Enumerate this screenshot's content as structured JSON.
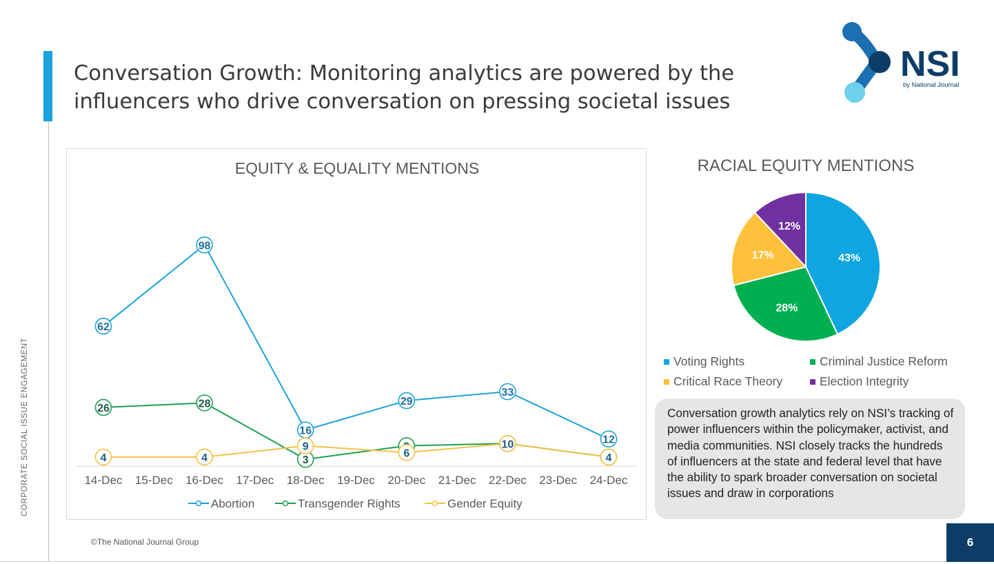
{
  "header": {
    "title_line1": "Conversation Growth: Monitoring analytics are powered by the",
    "title_line2": "influencers who drive conversation on pressing societal issues"
  },
  "logo": {
    "wordmark": "NSI",
    "tagline": "by National Journal"
  },
  "side_label": "CORPORATE SOCIAL ISSUE ENGAGEMENT",
  "footer": {
    "copyright": "©The National Journal Group",
    "page_number": "6"
  },
  "callout": {
    "text": "Conversation growth analytics rely on NSI’s tracking of power influencers within the policymaker, activist, and media communities. NSI closely tracks the hundreds of influencers at the state and federal level that have the ability to spark broader conversation on societal issues and draw in corporations"
  },
  "colors": {
    "accent": "#1aa3dc",
    "navy": "#0b3d66",
    "abortion": "#1aa3dc",
    "transgender": "#1e9e4f",
    "gender_equity": "#f5c242",
    "voting_rights": "#0ea5e0",
    "criminal_justice": "#00b050",
    "critical_race": "#ffc13b",
    "election_integrity": "#7030a0"
  },
  "chart_data": [
    {
      "type": "line",
      "title": "EQUITY & EQUALITY MENTIONS",
      "categories": [
        "14-Dec",
        "15-Dec",
        "16-Dec",
        "17-Dec",
        "18-Dec",
        "19-Dec",
        "20-Dec",
        "21-Dec",
        "22-Dec",
        "23-Dec",
        "24-Dec"
      ],
      "ylim": [
        0,
        110
      ],
      "grid": false,
      "legend_position": "bottom",
      "series": [
        {
          "name": "Abortion",
          "color_key": "abortion",
          "points": [
            {
              "x": "14-Dec",
              "y": 62
            },
            {
              "x": "16-Dec",
              "y": 98
            },
            {
              "x": "18-Dec",
              "y": 16
            },
            {
              "x": "20-Dec",
              "y": 29
            },
            {
              "x": "22-Dec",
              "y": 33
            },
            {
              "x": "24-Dec",
              "y": 12
            }
          ]
        },
        {
          "name": "Transgender Rights",
          "color_key": "transgender",
          "points": [
            {
              "x": "14-Dec",
              "y": 26
            },
            {
              "x": "16-Dec",
              "y": 28
            },
            {
              "x": "18-Dec",
              "y": 3
            },
            {
              "x": "20-Dec",
              "y": 9
            },
            {
              "x": "22-Dec",
              "y": 10
            },
            {
              "x": "24-Dec",
              "y": 4
            }
          ]
        },
        {
          "name": "Gender Equity",
          "color_key": "gender_equity",
          "points": [
            {
              "x": "14-Dec",
              "y": 4
            },
            {
              "x": "16-Dec",
              "y": 4
            },
            {
              "x": "18-Dec",
              "y": 9
            },
            {
              "x": "20-Dec",
              "y": 6
            },
            {
              "x": "22-Dec",
              "y": 10
            },
            {
              "x": "24-Dec",
              "y": 4
            }
          ]
        }
      ]
    },
    {
      "type": "pie",
      "title": "RACIAL EQUITY MENTIONS",
      "legend_position": "bottom",
      "slices": [
        {
          "label": "Voting Rights",
          "value": 43,
          "display": "43%",
          "color_key": "voting_rights"
        },
        {
          "label": "Criminal Justice Reform",
          "value": 28,
          "display": "28%",
          "color_key": "criminal_justice"
        },
        {
          "label": "Critical Race Theory",
          "value": 17,
          "display": "17%",
          "color_key": "critical_race"
        },
        {
          "label": "Election Integrity",
          "value": 12,
          "display": "12%",
          "color_key": "election_integrity"
        }
      ]
    }
  ]
}
